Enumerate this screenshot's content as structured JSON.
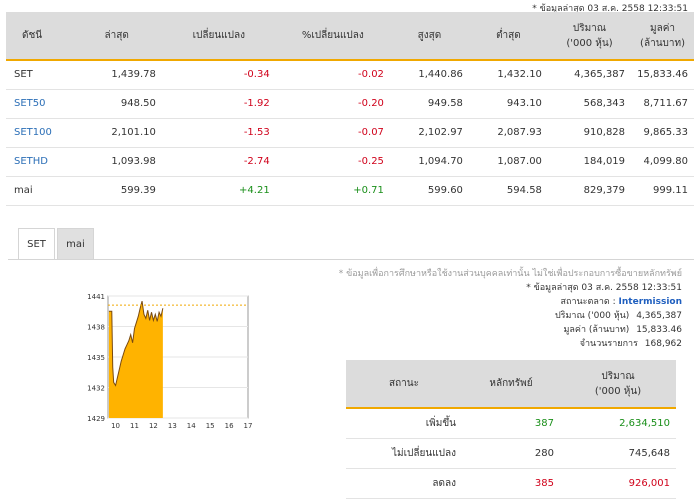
{
  "update_note": "* ข้อมูลล่าสุด 03 ส.ค. 2558 12:33:51",
  "index_table": {
    "headers": [
      "ดัชนี",
      "ล่าสุด",
      "เปลี่ยนแปลง",
      "%เปลี่ยนแปลง",
      "สูงสุด",
      "ต่ำสุด",
      "ปริมาณ\n('000 หุ้น)",
      "มูลค่า\n(ล้านบาท)"
    ],
    "rows": [
      {
        "name": "SET",
        "last": "1,439.78",
        "chg": "-0.34",
        "pct": "-0.02",
        "high": "1,440.86",
        "low": "1,432.10",
        "vol": "4,365,387",
        "val": "15,833.46"
      },
      {
        "name": "SET50",
        "last": "948.50",
        "chg": "-1.92",
        "pct": "-0.20",
        "high": "949.58",
        "low": "943.10",
        "vol": "568,343",
        "val": "8,711.67"
      },
      {
        "name": "SET100",
        "last": "2,101.10",
        "chg": "-1.53",
        "pct": "-0.07",
        "high": "2,102.97",
        "low": "2,087.93",
        "vol": "910,828",
        "val": "9,865.33"
      },
      {
        "name": "SETHD",
        "last": "1,093.98",
        "chg": "-2.74",
        "pct": "-0.25",
        "high": "1,094.70",
        "low": "1,087.00",
        "vol": "184,019",
        "val": "4,099.80"
      },
      {
        "name": "mai",
        "last": "599.39",
        "chg": "+4.21",
        "pct": "+0.71",
        "high": "599.60",
        "low": "594.58",
        "vol": "829,379",
        "val": "999.11"
      }
    ],
    "colors": {
      "negative": "#d0021b",
      "positive": "#1a8f1a",
      "link": "#2c6fb7"
    }
  },
  "tabs": [
    "SET",
    "mai"
  ],
  "info": {
    "disclaimer": "* ข้อมูลเพื่อการศึกษาหรือใช้งานส่วนบุคคลเท่านั้น ไม่ใช่เพื่อประกอบการซื้อขายหลักทรัพย์",
    "update": "* ข้อมูลล่าสุด 03 ส.ค. 2558 12:33:51",
    "market_status_label": "สถานะตลาด :",
    "market_status_value": "Intermission",
    "volume_label": "ปริมาณ ('000 หุ้น)",
    "volume_value": "4,365,387",
    "value_label": "มูลค่า (ล้านบาท)",
    "value_value": "15,833.46",
    "deals_label": "จำนวนรายการ",
    "deals_value": "168,962"
  },
  "status_table": {
    "headers": [
      "สถานะ",
      "หลักทรัพย์",
      "ปริมาณ\n('000 หุ้น)"
    ],
    "rows": [
      {
        "status": "เพิ่มขึ้น",
        "count": "387",
        "volume": "2,634,510",
        "color": "#1a8f1a"
      },
      {
        "status": "ไม่เปลี่ยนแปลง",
        "count": "280",
        "volume": "745,648",
        "color": "#333333"
      },
      {
        "status": "ลดลง",
        "count": "385",
        "volume": "926,001",
        "color": "#d0021b"
      }
    ]
  },
  "chart_data": {
    "type": "area",
    "title": "",
    "xlabel": "",
    "ylabel": "",
    "x_ticks": [
      "10",
      "11",
      "12",
      "13",
      "14",
      "15",
      "16",
      "17"
    ],
    "y_ticks": [
      "1441",
      "1438",
      "1435",
      "1432",
      "1429"
    ],
    "xlim": [
      9.6,
      17
    ],
    "ylim": [
      1429,
      1441
    ],
    "reference_level": 1440.1,
    "fill_color": "#ffb300",
    "line_color": "#7a4a10",
    "series": [
      {
        "x": [
          9.65,
          9.8,
          9.85,
          9.9,
          10.0,
          10.1,
          10.2,
          10.3,
          10.4,
          10.5,
          10.6,
          10.7,
          10.8,
          10.9,
          11.0,
          11.1,
          11.2,
          11.3,
          11.4,
          11.5,
          11.6,
          11.7,
          11.8,
          11.9,
          12.0,
          12.1,
          12.2,
          12.3,
          12.4,
          12.5
        ],
        "y": [
          1439.5,
          1439.5,
          1434.0,
          1432.5,
          1432.2,
          1433.0,
          1433.8,
          1434.6,
          1435.2,
          1435.8,
          1436.2,
          1436.6,
          1437.2,
          1436.4,
          1437.8,
          1438.4,
          1439.0,
          1439.8,
          1440.5,
          1439.2,
          1438.8,
          1439.6,
          1438.6,
          1439.4,
          1438.6,
          1439.2,
          1438.5,
          1439.4,
          1439.0,
          1439.8
        ]
      }
    ]
  }
}
